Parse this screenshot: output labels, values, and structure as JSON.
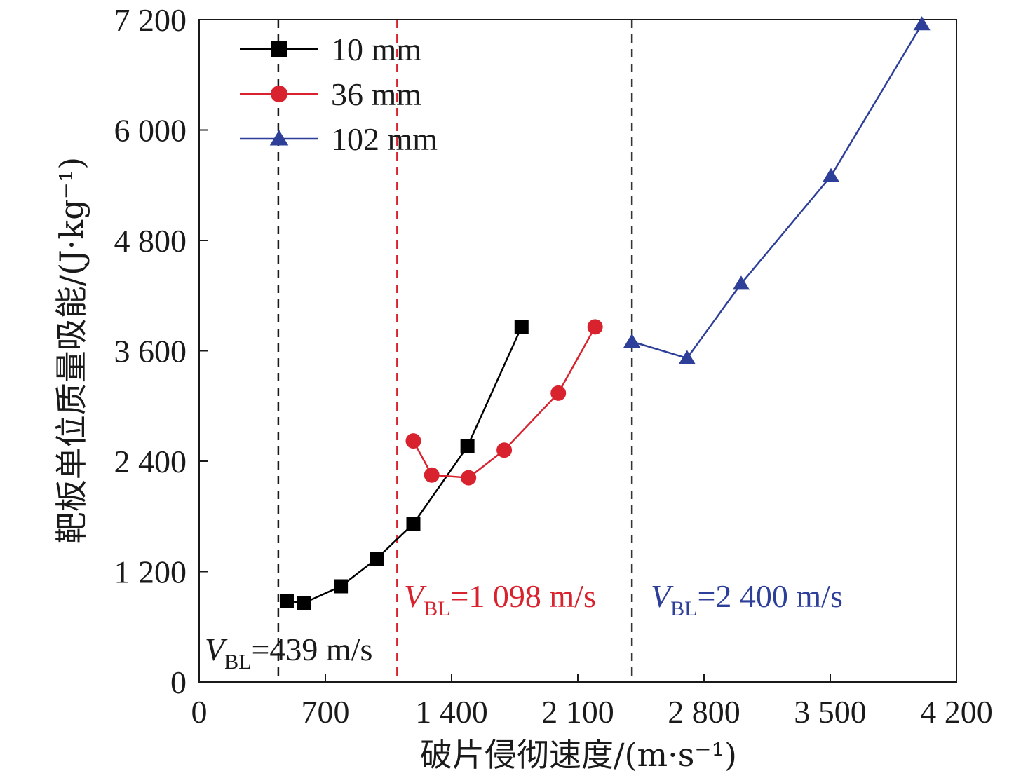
{
  "chart_data": {
    "type": "line",
    "xlabel": "破片侵彻速度/(m·s⁻¹)",
    "ylabel": "靶板单位质量吸能/(J·kg⁻¹)",
    "xlim": [
      0,
      4200
    ],
    "ylim": [
      0,
      7200
    ],
    "x_ticks": [
      0,
      700,
      1400,
      2100,
      2800,
      3500,
      4200
    ],
    "x_tick_labels": [
      "0",
      "700",
      "1 400",
      "2 100",
      "2 800",
      "3 500",
      "4 200"
    ],
    "y_ticks": [
      0,
      1200,
      2400,
      3600,
      4800,
      6000,
      7200
    ],
    "y_tick_labels": [
      "0",
      "1 200",
      "2 400",
      "3 600",
      "4 800",
      "6 000",
      "7 200"
    ],
    "grid": false,
    "legend_position": "top-left",
    "series": [
      {
        "name": "10 mm",
        "color": "#000000",
        "marker": "square",
        "x": [
          486,
          582,
          786,
          984,
          1188,
          1488,
          1788
        ],
        "y": [
          880,
          860,
          1040,
          1340,
          1720,
          2560,
          3860
        ]
      },
      {
        "name": "36 mm",
        "color": "#d8232f",
        "marker": "circle",
        "x": [
          1188,
          1290,
          1494,
          1692,
          1992,
          2196
        ],
        "y": [
          2620,
          2250,
          2220,
          2520,
          3140,
          3860
        ]
      },
      {
        "name": "102 mm",
        "color": "#2e3f9a",
        "marker": "triangle",
        "x": [
          2400,
          2706,
          3006,
          3504,
          4008
        ],
        "y": [
          3700,
          3520,
          4330,
          5500,
          7150
        ]
      }
    ],
    "reference_lines": [
      {
        "x": 439,
        "color": "#1a1a1a",
        "label_main": "V",
        "label_sub": "BL",
        "label_value": "=439 m/s"
      },
      {
        "x": 1098,
        "color": "#d8232f",
        "label_main": "V",
        "label_sub": "BL",
        "label_value": "=1 098 m/s"
      },
      {
        "x": 2400,
        "color": "#333333",
        "label_main": "V",
        "label_sub": "BL",
        "label_value": "=2 400 m/s",
        "label_color": "#2e3f9a"
      }
    ]
  }
}
